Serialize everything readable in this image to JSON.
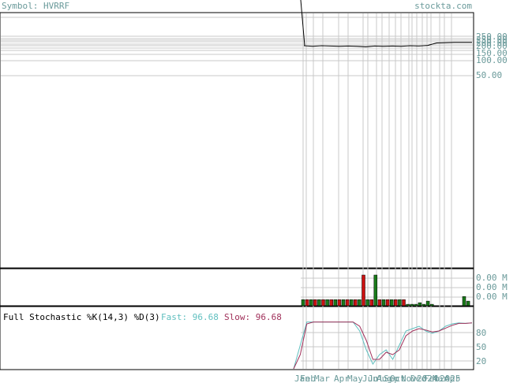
{
  "header": {
    "symbol_label": "Symbol: HVRRF",
    "site": "stockta.com"
  },
  "colors": {
    "label": "#6a9a9a",
    "grid": "#c8c8c8",
    "frame": "#000000",
    "up": "#1a7a1a",
    "down": "#cc1111",
    "fast": "#5fbfbf",
    "slow": "#a0305a"
  },
  "chart_data": [
    {
      "type": "line",
      "name": "price",
      "y_ticks": [
        "250.00",
        "200.00",
        "150.00",
        "100.00",
        "50.00"
      ],
      "x_ticks": [
        "Jan",
        "Feb",
        "Mar",
        "Apr",
        "May",
        "Jun",
        "Jul",
        "Aug",
        "Sep",
        "Oct",
        "Nov",
        "Dec",
        "2024",
        "Feb",
        "Mar",
        "2025",
        "Apr"
      ],
      "x": [
        "2023-01",
        "2023-02",
        "2023-03",
        "2023-04",
        "2023-05",
        "2023-06",
        "2023-07",
        "2023-08",
        "2023-09",
        "2023-10",
        "2023-11",
        "2023-12",
        "2024-01",
        "2024-02",
        "2024-03",
        "2024-04",
        "2024-05",
        "2024-06",
        "2024-07",
        "2024-08"
      ],
      "values": [
        200,
        198,
        200,
        199,
        198,
        199,
        198,
        196,
        199,
        198,
        199,
        198,
        200,
        199,
        201,
        210,
        211,
        212,
        212,
        212
      ],
      "spike_start": 2000
    },
    {
      "type": "bar",
      "name": "volume",
      "y_ticks": [
        "0.00 M",
        "0.00 M",
        "0.00 M"
      ],
      "values": [
        0.2,
        0.2,
        0.2,
        0.2,
        0.2,
        0.2,
        0.2,
        0.2,
        0.2,
        0.2,
        0.2,
        0.2,
        0.2,
        0.2,
        0.2,
        1.0,
        0.2,
        0.2,
        1.0,
        0.2,
        0.2,
        0.2,
        0.2,
        0.2,
        0.2,
        0.2,
        0.05,
        0.05,
        0.05,
        0.1,
        0.05,
        0.15,
        0.05,
        0.0,
        0.0,
        0.0,
        0.0,
        0.0,
        0.0,
        0.0,
        0.3,
        0.15
      ],
      "up": [
        true,
        false,
        true,
        false,
        true,
        false,
        true,
        false,
        true,
        false,
        true,
        false,
        true,
        false,
        true,
        false,
        true,
        false,
        true,
        false,
        true,
        false,
        true,
        false,
        true,
        false,
        true,
        true,
        true,
        true,
        true,
        true,
        true,
        true,
        true,
        true,
        true,
        true,
        true,
        true,
        true,
        true
      ]
    },
    {
      "type": "line",
      "name": "stochastic",
      "title": "Full Stochastic %K(14,3) %D(3)",
      "fast_label": "Fast: 96.68",
      "slow_label": "Slow: 96.68",
      "y_ticks": [
        "80",
        "50",
        "20"
      ],
      "ylim": [
        0,
        100
      ],
      "fast": [
        0,
        50,
        99,
        99,
        99,
        99,
        99,
        99,
        99,
        99,
        80,
        40,
        10,
        30,
        40,
        20,
        50,
        80,
        85,
        90,
        80,
        75,
        80,
        90,
        95,
        97,
        96,
        97
      ],
      "slow": [
        0,
        30,
        95,
        99,
        99,
        99,
        99,
        99,
        99,
        99,
        90,
        60,
        20,
        20,
        35,
        30,
        40,
        70,
        80,
        85,
        82,
        78,
        80,
        86,
        92,
        96,
        96,
        97
      ]
    }
  ]
}
